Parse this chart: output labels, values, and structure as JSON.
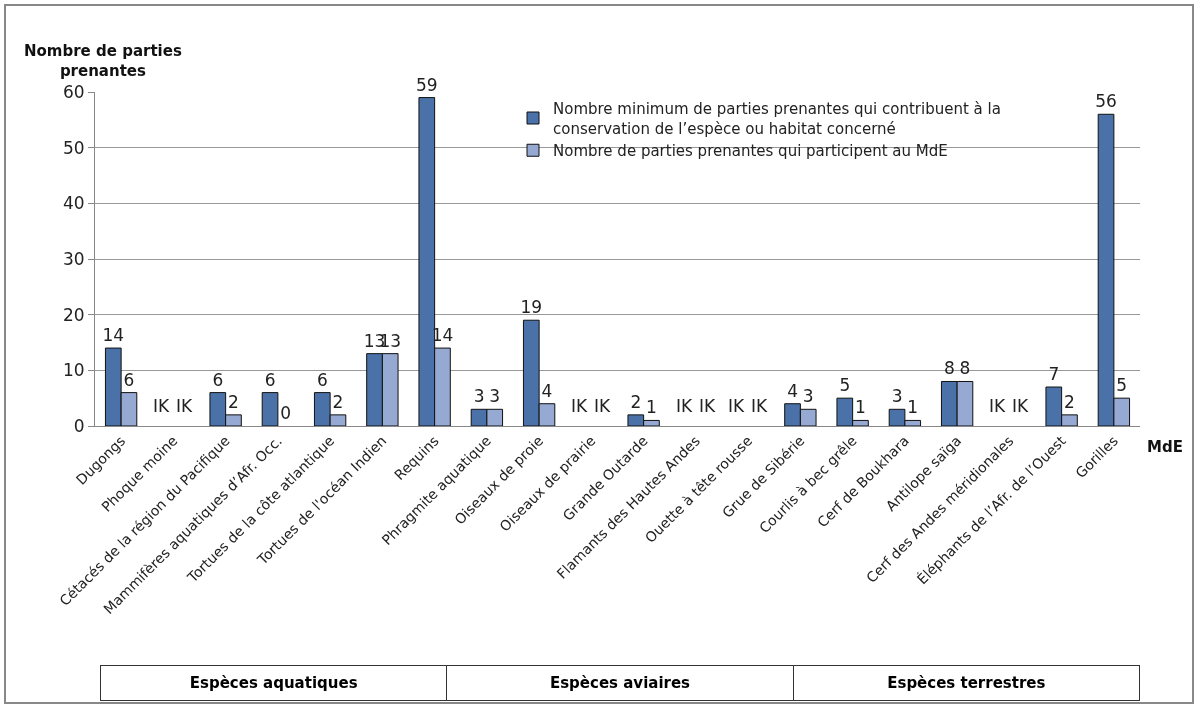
{
  "chart_data": {
    "type": "bar",
    "ylabel": "Nombre de parties prenantes",
    "xlabel": "MdE",
    "categories": [
      "Dugongs",
      "Phoque moine",
      "Cétacés de la région du Pacifique",
      "Mammifères aquatiques d’Afr. Occ.",
      "Tortues de la côte atlantique",
      "Tortues de l'océan Indien",
      "Requins",
      "Phragmite aquatique",
      "Oiseaux de proie",
      "Oiseaux de prairie",
      "Grande Outarde",
      "Flamants des Hautes Andes",
      "Ouette à tête rousse",
      "Grue de Sibérie",
      "Courlis à bec grêle",
      "Cerf de Boukhara",
      "Antilope saïga",
      "Cerf des Andes méridionales",
      "Éléphants de l’Afr. de l’Ouest",
      "Gorilles"
    ],
    "series": [
      {
        "name": "Nombre minimum de parties prenantes qui contribuent à la conservation de l’espèce ou habitat concerné",
        "color": "#4a72a8",
        "values": [
          14,
          null,
          6,
          6,
          6,
          13,
          59,
          3,
          19,
          null,
          2,
          null,
          null,
          4,
          5,
          3,
          8,
          null,
          7,
          56
        ],
        "value_labels": [
          "14",
          "IK",
          "6",
          "6",
          "6",
          "13",
          "59",
          "3",
          "19",
          "IK",
          "2",
          "IK",
          "IK",
          "4",
          "5",
          "3",
          "8",
          "IK",
          "7",
          "56"
        ]
      },
      {
        "name": "Nombre de parties prenantes qui participent au MdE",
        "color": "#95a9d3",
        "values": [
          6,
          null,
          2,
          0,
          2,
          13,
          14,
          3,
          4,
          null,
          1,
          null,
          null,
          3,
          1,
          1,
          8,
          null,
          2,
          5
        ],
        "value_labels": [
          "6",
          "IK",
          "2",
          "0",
          "2",
          "13",
          "14",
          "3",
          "4",
          "IK",
          "1",
          "IK",
          "IK",
          "3",
          "1",
          "1",
          "8",
          "IK",
          "2",
          "5"
        ]
      }
    ],
    "ylim": [
      0,
      60
    ],
    "yticks": [
      0,
      10,
      20,
      30,
      40,
      50,
      60
    ],
    "grid": "y",
    "legend": "top",
    "annotations": [
      "Espèces aquatiques",
      "Espèces aviaires",
      "Espèces terrestres"
    ]
  }
}
